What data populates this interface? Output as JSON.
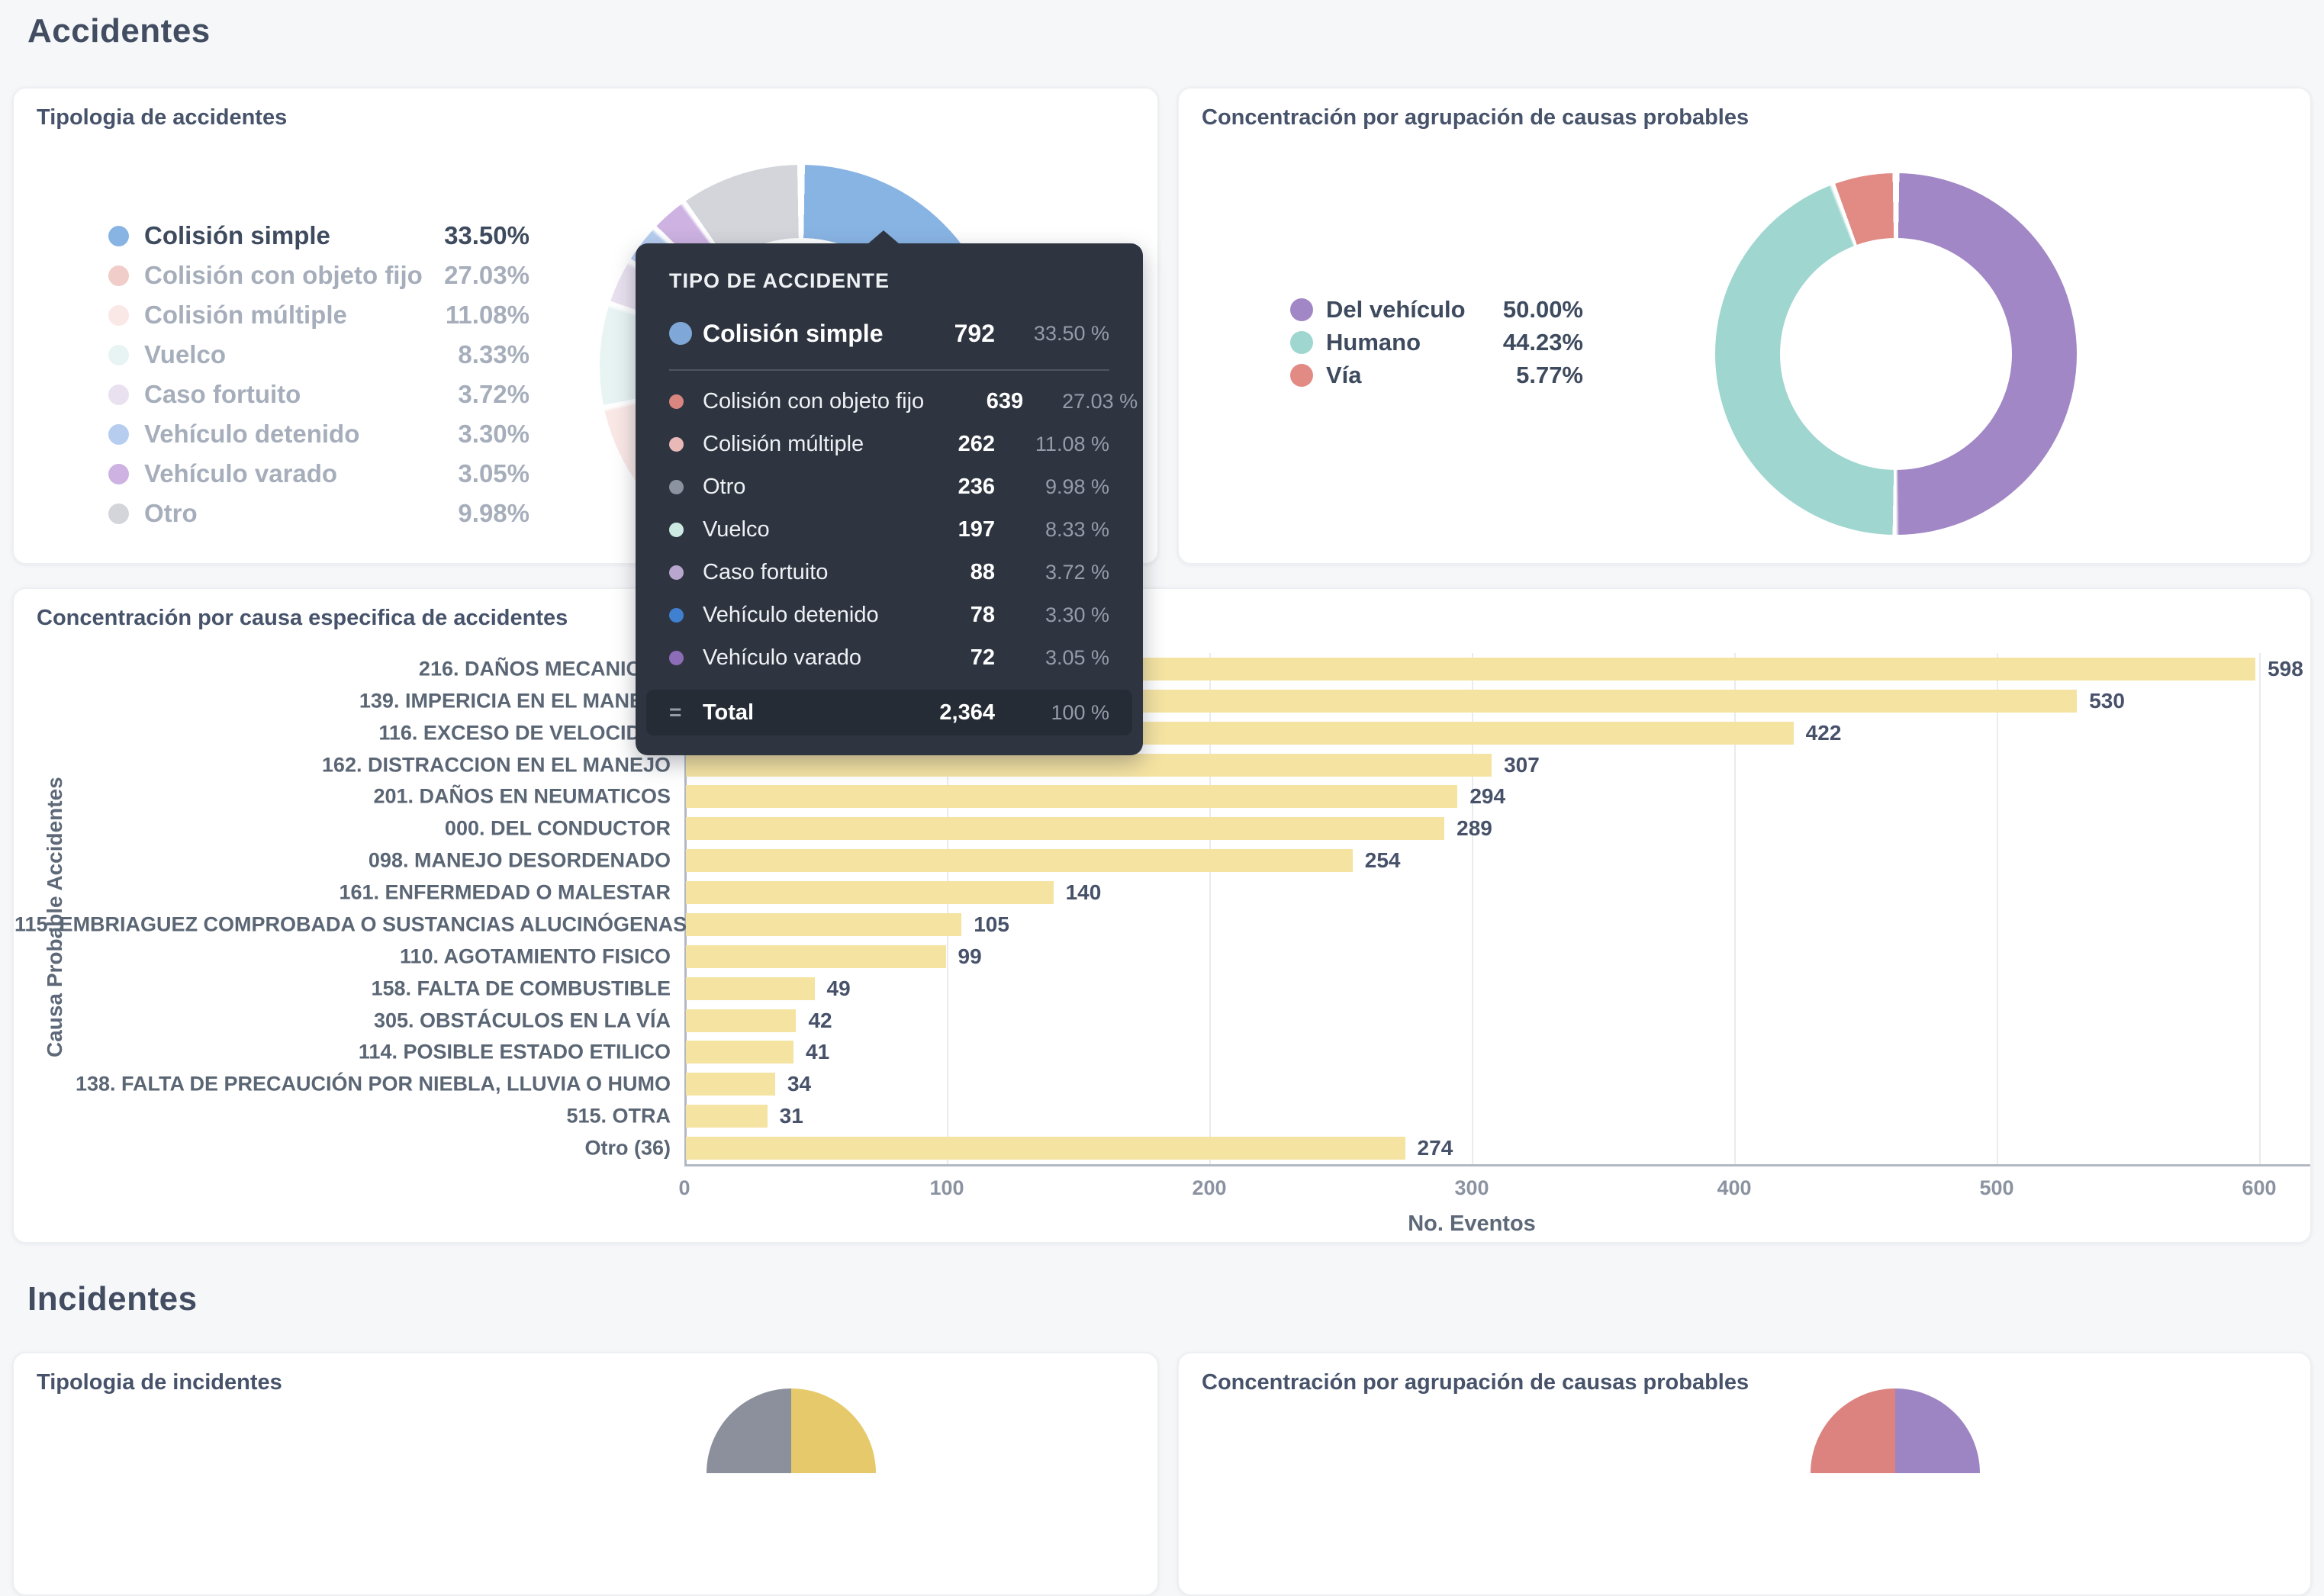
{
  "page": {
    "heading1": "Accidentes",
    "heading2": "Incidentes"
  },
  "colors": {
    "background": "#f6f7f9",
    "card": "#ffffff",
    "heading": "#424d62",
    "bar": "#f5e3a2",
    "tooltip_bg": "#2f3540",
    "grid": "#e9ebee",
    "axis": "#b2b8c2"
  },
  "cards": {
    "tipologia_accidentes": {
      "title": "Tipologia de accidentes",
      "legend": [
        {
          "label": "Colisión simple",
          "pct": "33.50%",
          "color": "#88b4e4",
          "dim": false
        },
        {
          "label": "Colisión con objeto fijo",
          "pct": "27.03%",
          "color": "#f0cdc9",
          "dim": true
        },
        {
          "label": "Colisión múltiple",
          "pct": "11.08%",
          "color": "#fae8e6",
          "dim": true
        },
        {
          "label": "Vuelco",
          "pct": "8.33%",
          "color": "#e8f4f3",
          "dim": true
        },
        {
          "label": "Caso fortuito",
          "pct": "3.72%",
          "color": "#e9e1f0",
          "dim": true
        },
        {
          "label": "Vehículo detenido",
          "pct": "3.30%",
          "color": "#b6cdf0",
          "dim": true
        },
        {
          "label": "Vehículo varado",
          "pct": "3.05%",
          "color": "#cdb2e2",
          "dim": true
        },
        {
          "label": "Otro",
          "pct": "9.98%",
          "color": "#d3d5da",
          "dim": true
        }
      ],
      "donut_slices": [
        {
          "label": "Colisión simple",
          "pct": 33.5,
          "color": "#88b4e4"
        },
        {
          "label": "Colisión con objeto fijo",
          "pct": 27.03,
          "color": "#f0cdc9"
        },
        {
          "label": "Colisión múltiple",
          "pct": 11.08,
          "color": "#fae8e6"
        },
        {
          "label": "Vuelco",
          "pct": 8.33,
          "color": "#e8f4f3"
        },
        {
          "label": "Caso fortuito",
          "pct": 3.72,
          "color": "#e9e1f0"
        },
        {
          "label": "Vehículo detenido",
          "pct": 3.3,
          "color": "#b6cdf0"
        },
        {
          "label": "Vehículo varado",
          "pct": 3.05,
          "color": "#cdb2e2"
        },
        {
          "label": "Otro",
          "pct": 9.98,
          "color": "#d3d5da"
        }
      ]
    },
    "agrupacion_accidentes": {
      "title": "Concentración por agrupación de causas probables",
      "legend": [
        {
          "label": "Del vehículo",
          "pct": "50.00%",
          "color": "#a187c5",
          "dim": false
        },
        {
          "label": "Humano",
          "pct": "44.23%",
          "color": "#9fd6cf",
          "dim": false
        },
        {
          "label": "Vía",
          "pct": "5.77%",
          "color": "#e18b84",
          "dim": false
        }
      ],
      "donut_slices": [
        {
          "label": "Del vehículo",
          "pct": 50.0,
          "color": "#a187c5"
        },
        {
          "label": "Humano",
          "pct": 44.23,
          "color": "#9fd6cf"
        },
        {
          "label": "Vía",
          "pct": 5.77,
          "color": "#e18b84"
        }
      ]
    },
    "causa_especifica": {
      "title": "Concentración por causa especifica de accidentes",
      "ylabel": "Causa Probable Accidentes",
      "xlabel": "No. Eventos",
      "ticks": [
        0,
        100,
        200,
        300,
        400,
        500,
        600
      ],
      "bars": [
        {
          "label": "216. DAÑOS MECANICOS",
          "value": 598
        },
        {
          "label": "139. IMPERICIA EN EL MANEJO",
          "value": 530
        },
        {
          "label": "116. EXCESO DE VELOCIDAD",
          "value": 422
        },
        {
          "label": "162. DISTRACCION EN EL MANEJO",
          "value": 307
        },
        {
          "label": "201. DAÑOS EN NEUMATICOS",
          "value": 294
        },
        {
          "label": "000. DEL CONDUCTOR",
          "value": 289
        },
        {
          "label": "098. MANEJO DESORDENADO",
          "value": 254
        },
        {
          "label": "161. ENFERMEDAD O MALESTAR",
          "value": 140
        },
        {
          "label": "115. EMBRIAGUEZ COMPROBADA O SUSTANCIAS ALUCINÓGENAS",
          "value": 105
        },
        {
          "label": "110. AGOTAMIENTO FISICO",
          "value": 99
        },
        {
          "label": "158. FALTA DE COMBUSTIBLE",
          "value": 49
        },
        {
          "label": "305. OBSTÁCULOS EN LA VÍA",
          "value": 42
        },
        {
          "label": "114. POSIBLE ESTADO ETILICO",
          "value": 41
        },
        {
          "label": "138. FALTA DE PRECAUCIÓN POR NIEBLA, LLUVIA O HUMO",
          "value": 34
        },
        {
          "label": "515. OTRA",
          "value": 31
        },
        {
          "label": "Otro (36)",
          "value": 274
        }
      ]
    },
    "tipologia_incidentes": {
      "title": "Tipologia de incidentes",
      "pie_first_slice_color": "#e5c96a",
      "pie_last_slice_color": "#8b909c"
    },
    "agrupacion_incidentes": {
      "title": "Concentración por agrupación de causas probables",
      "pie_first_slice_color": "#9d85c3",
      "pie_last_slice_color": "#dc8380"
    }
  },
  "tooltip": {
    "header": "TIPO DE ACCIDENTE",
    "highlight": {
      "label": "Colisión simple",
      "value": "792",
      "pct": "33.50 %",
      "color": "#7fa8d9"
    },
    "rows": [
      {
        "label": "Colisión con objeto fijo",
        "value": "639",
        "pct": "27.03 %",
        "color": "#d98580"
      },
      {
        "label": "Colisión múltiple",
        "value": "262",
        "pct": "11.08 %",
        "color": "#e8b9b7"
      },
      {
        "label": "Otro",
        "value": "236",
        "pct": "9.98 %",
        "color": "#8b93a0"
      },
      {
        "label": "Vuelco",
        "value": "197",
        "pct": "8.33 %",
        "color": "#cdeae2"
      },
      {
        "label": "Caso fortuito",
        "value": "88",
        "pct": "3.72 %",
        "color": "#b9a6cf"
      },
      {
        "label": "Vehículo detenido",
        "value": "78",
        "pct": "3.30 %",
        "color": "#4080d0"
      },
      {
        "label": "Vehículo varado",
        "value": "72",
        "pct": "3.05 %",
        "color": "#8d6cb8"
      }
    ],
    "total": {
      "symbol": "=",
      "label": "Total",
      "value": "2,364",
      "pct": "100 %"
    }
  },
  "chart_data": [
    {
      "type": "pie",
      "title": "Tipologia de accidentes",
      "labels": [
        "Colisión simple",
        "Colisión con objeto fijo",
        "Colisión múltiple",
        "Vuelco",
        "Caso fortuito",
        "Vehículo detenido",
        "Vehículo varado",
        "Otro"
      ],
      "values": [
        792,
        639,
        262,
        197,
        88,
        78,
        72,
        236
      ],
      "pcts": [
        33.5,
        27.03,
        11.08,
        8.33,
        3.72,
        3.3,
        3.05,
        9.98
      ],
      "total": 2364,
      "donut": true,
      "legend_position": "left",
      "highlighted": "Colisión simple"
    },
    {
      "type": "pie",
      "title": "Concentración por agrupación de causas probables",
      "labels": [
        "Del vehículo",
        "Humano",
        "Vía"
      ],
      "pcts": [
        50.0,
        44.23,
        5.77
      ],
      "donut": true,
      "legend_position": "left"
    },
    {
      "type": "bar",
      "orientation": "horizontal",
      "title": "Concentración por causa especifica de accidentes",
      "categories": [
        "216. DAÑOS MECANICOS",
        "139. IMPERICIA EN EL MANEJO",
        "116. EXCESO DE VELOCIDAD",
        "162. DISTRACCION EN EL MANEJO",
        "201. DAÑOS EN NEUMATICOS",
        "000. DEL CONDUCTOR",
        "098. MANEJO DESORDENADO",
        "161. ENFERMEDAD O MALESTAR",
        "115. EMBRIAGUEZ COMPROBADA O SUSTANCIAS ALUCINÓGENAS",
        "110. AGOTAMIENTO FISICO",
        "158. FALTA DE COMBUSTIBLE",
        "305. OBSTÁCULOS EN LA VÍA",
        "114. POSIBLE ESTADO ETILICO",
        "138. FALTA DE PRECAUCIÓN POR NIEBLA, LLUVIA O HUMO",
        "515. OTRA",
        "Otro (36)"
      ],
      "values": [
        598,
        530,
        422,
        307,
        294,
        289,
        254,
        140,
        105,
        99,
        49,
        42,
        41,
        34,
        31,
        274
      ],
      "xlabel": "No. Eventos",
      "ylabel": "Causa Probable Accidentes",
      "xlim": [
        0,
        600
      ],
      "grid": true
    }
  ]
}
